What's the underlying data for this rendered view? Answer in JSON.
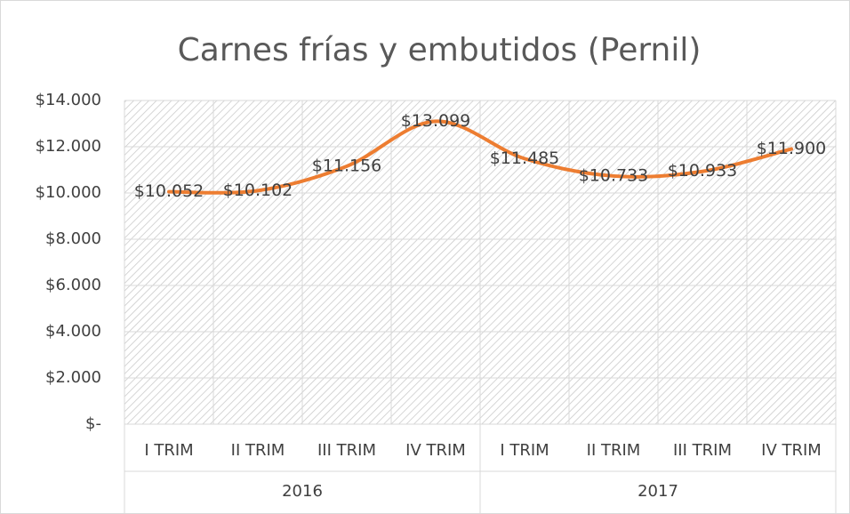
{
  "chart_data": {
    "type": "line",
    "title": "Carnes frías y embutidos (Pernil)",
    "category_groups": [
      {
        "name": "2016",
        "categories": [
          "I TRIM",
          "II TRIM",
          "III TRIM",
          "IV TRIM"
        ]
      },
      {
        "name": "2017",
        "categories": [
          "I TRIM",
          "II TRIM",
          "III TRIM",
          "IV TRIM"
        ]
      }
    ],
    "values": [
      10052,
      10102,
      11156,
      13099,
      11485,
      10733,
      10933,
      11900
    ],
    "value_labels": [
      "$10.052",
      "$10.102",
      "$11.156",
      "$13.099",
      "$11.485",
      "$10.733",
      "$10.933",
      "$11.900"
    ],
    "color": "#ed7d31",
    "ylim": [
      0,
      14000
    ],
    "yticks": [
      {
        "value": 0,
        "label": "$-"
      },
      {
        "value": 2000,
        "label": "$2.000"
      },
      {
        "value": 4000,
        "label": "$4.000"
      },
      {
        "value": 6000,
        "label": "$6.000"
      },
      {
        "value": 8000,
        "label": "$8.000"
      },
      {
        "value": 10000,
        "label": "$10.000"
      },
      {
        "value": 12000,
        "label": "$12.000"
      },
      {
        "value": 14000,
        "label": "$14.000"
      }
    ],
    "grid": true
  }
}
